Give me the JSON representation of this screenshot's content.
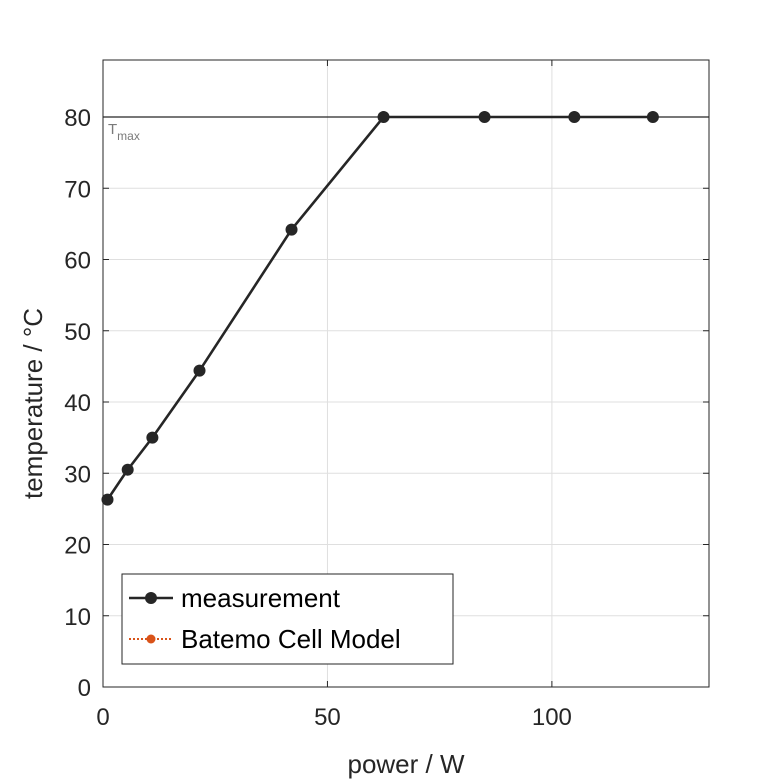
{
  "chart_data": {
    "type": "line",
    "xlabel": "power / W",
    "ylabel": "temperature / °C",
    "xlim": [
      0,
      135
    ],
    "ylim": [
      0,
      88
    ],
    "xticks": [
      0,
      50,
      100
    ],
    "yticks": [
      0,
      10,
      20,
      30,
      40,
      50,
      60,
      70,
      80
    ],
    "grid": true,
    "legend_position": "bottom-left",
    "reference_line": {
      "y": 80,
      "label_main": "T",
      "label_sub": "max"
    },
    "series": [
      {
        "name": "measurement",
        "color": "#262626",
        "marker": "circle",
        "line": "solid",
        "x": [
          1,
          5.5,
          11,
          21.5,
          42,
          62.5,
          85,
          105,
          122.5
        ],
        "y": [
          26.3,
          30.5,
          35,
          44.4,
          64.2,
          80,
          80,
          80,
          80
        ]
      },
      {
        "name": "Batemo Cell Model",
        "color": "#d95319",
        "marker": "circle",
        "line": "dotted",
        "x": [],
        "y": []
      }
    ]
  }
}
